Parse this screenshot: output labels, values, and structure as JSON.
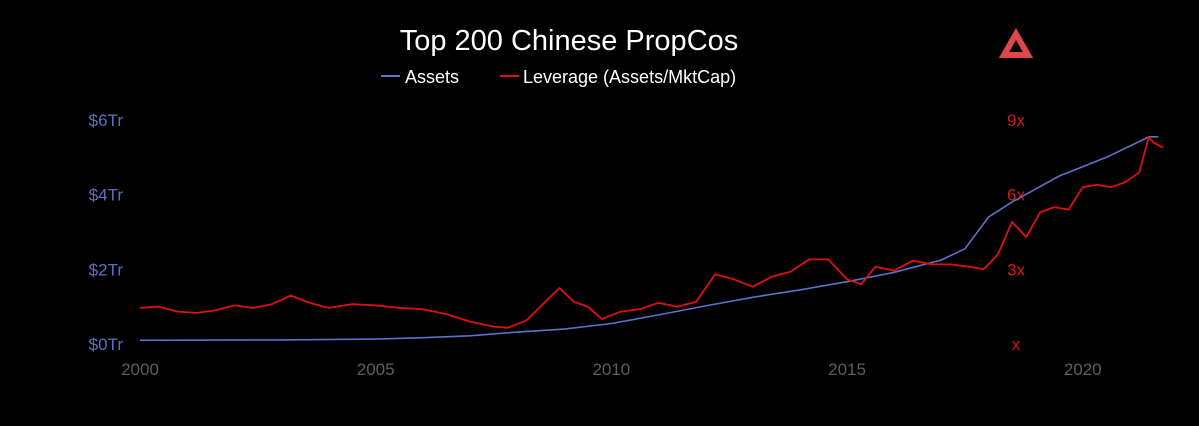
{
  "colors": {
    "background": "#000000",
    "assets": "#5b73c8",
    "leverage": "#e01010",
    "left_axis_text": "#5b6fc0",
    "right_axis_text": "#d11a1a",
    "x_axis_text": "#5e5e5e",
    "logo": "#e0474c"
  },
  "logo": {
    "icon": "triangle-logo-icon"
  },
  "chart_data": {
    "type": "line",
    "title": "Top 200 Chinese PropCos",
    "legend": {
      "placement": "top-center",
      "entries": [
        "Assets",
        "Leverage (Assets/MktCap)"
      ]
    },
    "grid": false,
    "x_ticks": [
      "2000",
      "2005",
      "2010",
      "2015",
      "2020"
    ],
    "xlim": [
      2000,
      2022
    ],
    "y_left": {
      "ticks": [
        "$0Tr",
        "$2Tr",
        "$4Tr",
        "$6Tr"
      ],
      "range": [
        0,
        6
      ]
    },
    "y_right": {
      "ticks": [
        "x",
        "3x",
        "6x",
        "9x"
      ],
      "range": [
        0,
        9
      ]
    },
    "series": [
      {
        "name": "Assets",
        "axis": "left",
        "x": [
          2000,
          2003,
          2005,
          2006,
          2007,
          2008,
          2009,
          2010,
          2011,
          2012,
          2013,
          2014,
          2015,
          2016,
          2017,
          2017.5,
          2018,
          2018.5,
          2019,
          2019.5,
          2020,
          2020.5,
          2021,
          2021.4,
          2021.6
        ],
        "y": [
          0.1,
          0.11,
          0.13,
          0.17,
          0.22,
          0.32,
          0.4,
          0.55,
          0.78,
          1.02,
          1.25,
          1.45,
          1.67,
          1.92,
          2.25,
          2.55,
          3.4,
          3.8,
          4.15,
          4.5,
          4.75,
          5.0,
          5.3,
          5.55,
          5.55
        ]
      },
      {
        "name": "Leverage (Assets/MktCap)",
        "axis": "right",
        "x": [
          2000,
          2000.4,
          2000.8,
          2001.2,
          2001.6,
          2002,
          2002.4,
          2002.8,
          2003.2,
          2003.6,
          2004,
          2004.5,
          2005,
          2005.5,
          2006,
          2006.5,
          2007,
          2007.5,
          2007.8,
          2008.2,
          2008.6,
          2008.9,
          2009.2,
          2009.5,
          2009.8,
          2010.2,
          2010.6,
          2011,
          2011.4,
          2011.8,
          2012.2,
          2012.6,
          2013,
          2013.4,
          2013.8,
          2014.2,
          2014.6,
          2015,
          2015.3,
          2015.6,
          2016,
          2016.4,
          2016.8,
          2017.2,
          2017.6,
          2017.9,
          2018.2,
          2018.5,
          2018.8,
          2019.1,
          2019.4,
          2019.7,
          2020,
          2020.3,
          2020.6,
          2020.9,
          2021.2,
          2021.4,
          2021.5,
          2021.7
        ],
        "y": [
          1.45,
          1.5,
          1.3,
          1.25,
          1.35,
          1.55,
          1.45,
          1.6,
          1.95,
          1.65,
          1.45,
          1.6,
          1.55,
          1.45,
          1.4,
          1.2,
          0.9,
          0.7,
          0.65,
          0.95,
          1.7,
          2.25,
          1.7,
          1.5,
          1.0,
          1.3,
          1.4,
          1.65,
          1.5,
          1.7,
          2.8,
          2.6,
          2.3,
          2.7,
          2.9,
          3.4,
          3.4,
          2.6,
          2.4,
          3.1,
          2.95,
          3.35,
          3.2,
          3.2,
          3.1,
          3.0,
          3.6,
          4.9,
          4.3,
          5.3,
          5.5,
          5.4,
          6.3,
          6.4,
          6.3,
          6.5,
          6.9,
          8.3,
          8.1,
          7.9
        ]
      }
    ]
  }
}
